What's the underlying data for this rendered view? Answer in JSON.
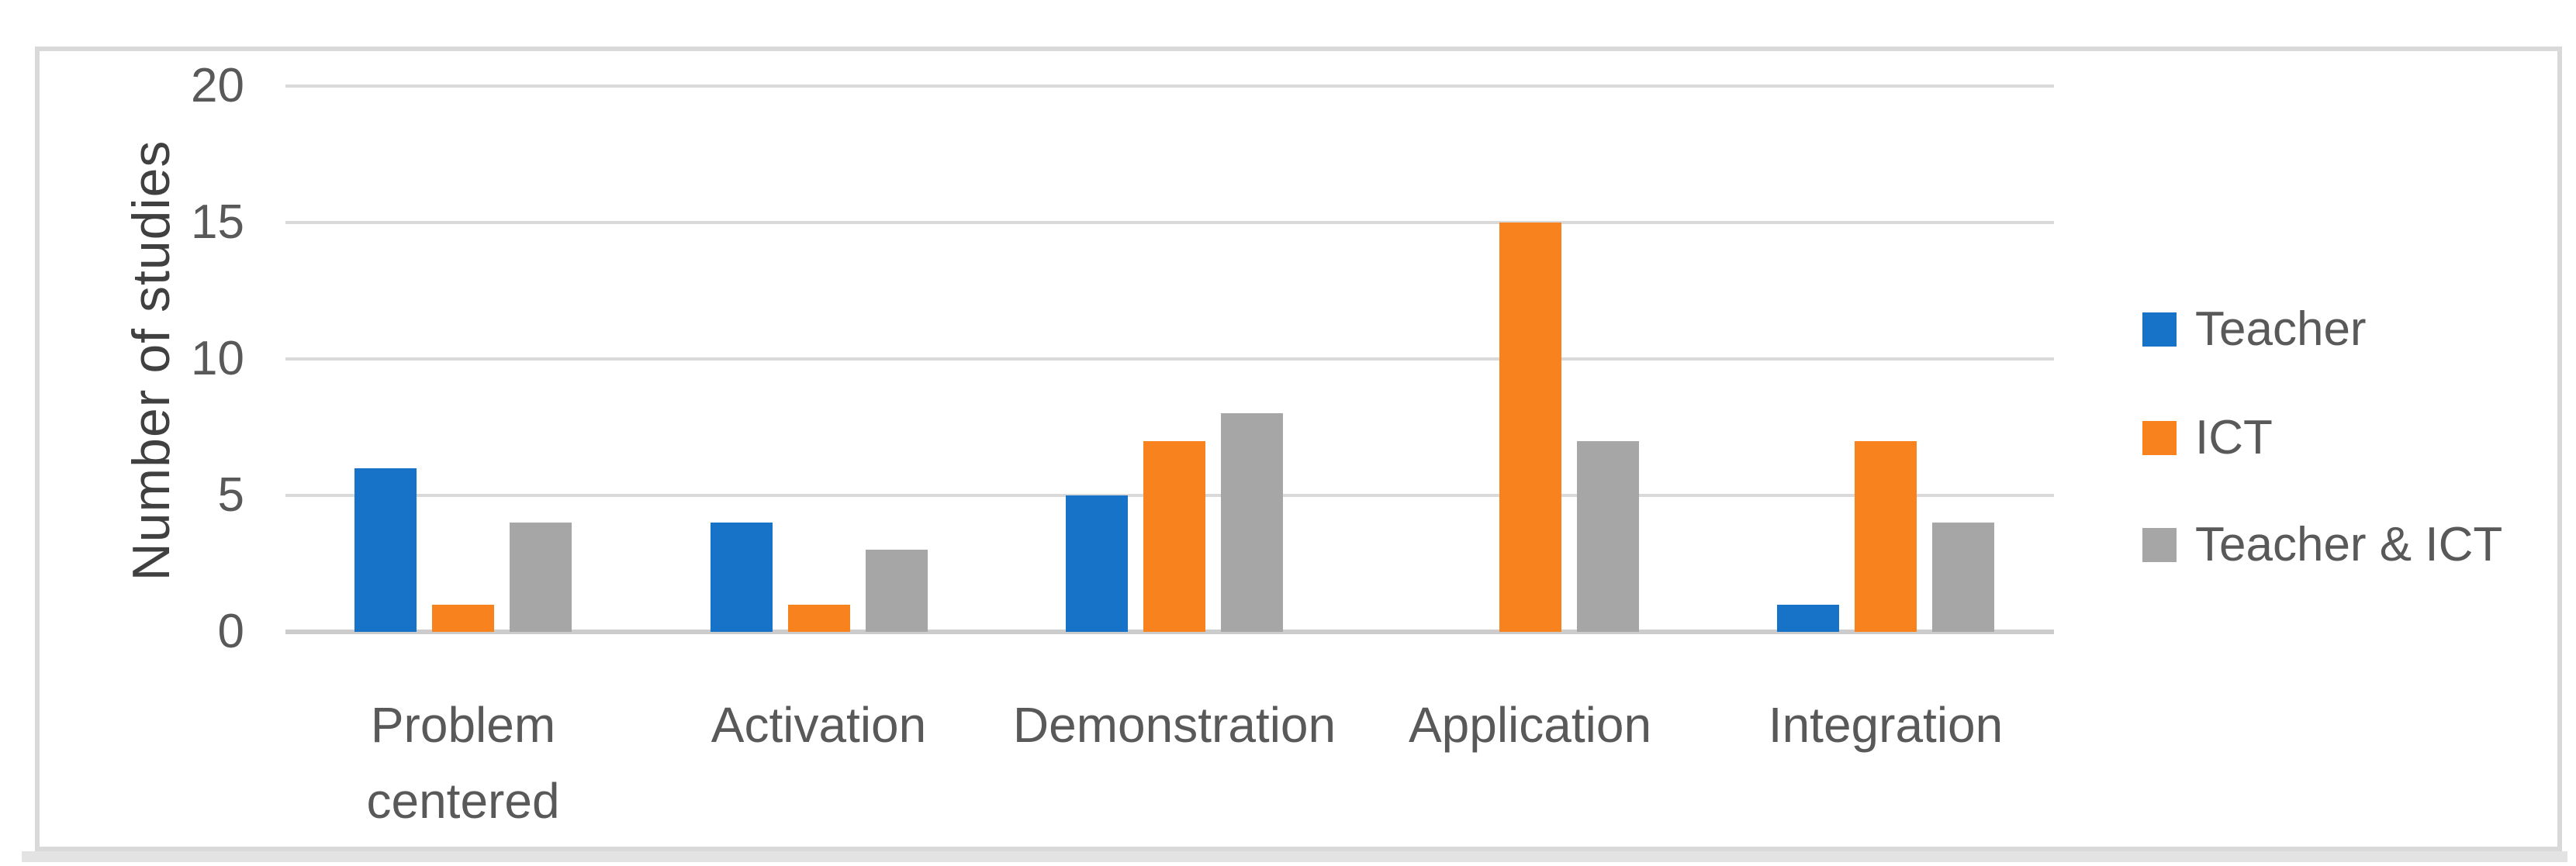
{
  "chart_data": {
    "type": "bar",
    "title": "",
    "xlabel": "",
    "ylabel": "Number of studies",
    "categories": [
      "Problem centered",
      "Activation",
      "Demonstration",
      "Application",
      "Integration"
    ],
    "series": [
      {
        "name": "Teacher",
        "color": "#1673C8",
        "values": [
          6,
          4,
          5,
          0,
          1
        ]
      },
      {
        "name": "ICT",
        "color": "#F8821E",
        "values": [
          1,
          1,
          7,
          15,
          7
        ]
      },
      {
        "name": "Teacher & ICT",
        "color": "#A6A6A6",
        "values": [
          4,
          3,
          8,
          7,
          4
        ]
      }
    ],
    "ylim": [
      0,
      20
    ],
    "yticks": [
      0,
      5,
      10,
      15,
      20
    ],
    "grid": true,
    "legend_position": "right"
  },
  "colors": {
    "gridline": "#D9D9D9",
    "axis_line": "#CCCCCC",
    "tick_label": "#595959",
    "category_label": "#595959",
    "legend_label": "#595959",
    "axis_title": "#404040",
    "frame_border": "#D9D9D9",
    "background": "#FFFFFF"
  }
}
